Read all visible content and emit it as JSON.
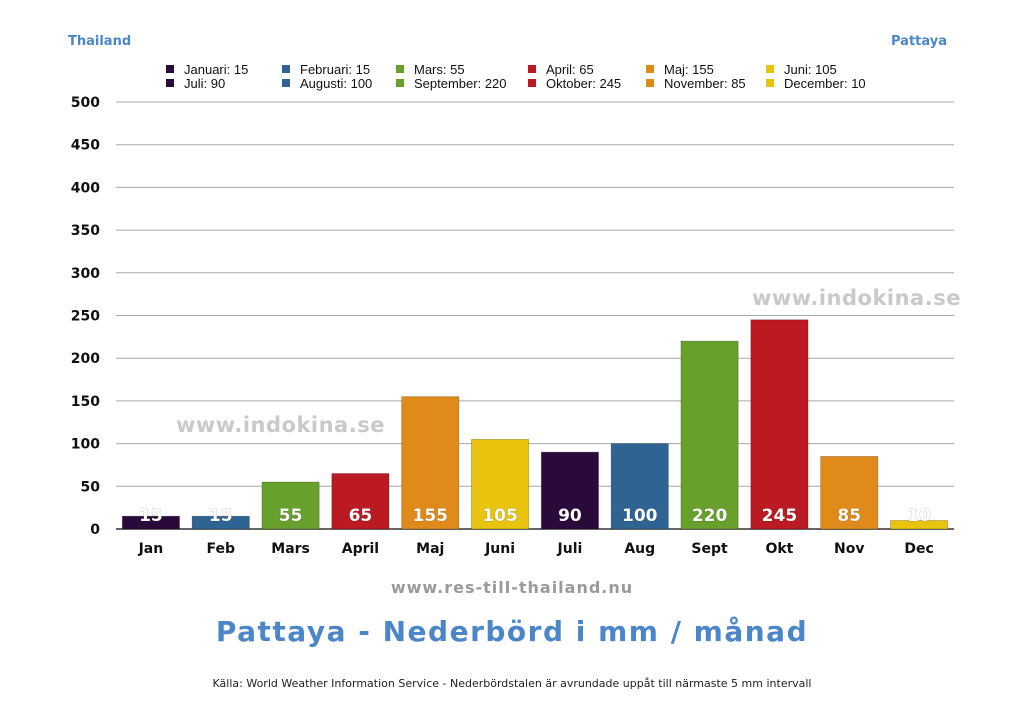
{
  "header": {
    "left": "Thailand",
    "right": "Pattaya"
  },
  "legend": [
    {
      "label": "Januari: 15",
      "color": "#2a0a3a"
    },
    {
      "label": "Februari: 15",
      "color": "#2f6391"
    },
    {
      "label": "Mars: 55",
      "color": "#67a02a"
    },
    {
      "label": "April: 65",
      "color": "#bb1a22"
    },
    {
      "label": "Maj: 155",
      "color": "#e08a1a"
    },
    {
      "label": "Juni: 105",
      "color": "#e8c40e"
    },
    {
      "label": "Juli: 90",
      "color": "#2a0a3a"
    },
    {
      "label": "Augusti: 100",
      "color": "#2f6391"
    },
    {
      "label": "September: 220",
      "color": "#67a02a"
    },
    {
      "label": "Oktober: 245",
      "color": "#bb1a22"
    },
    {
      "label": "November: 85",
      "color": "#e08a1a"
    },
    {
      "label": "December: 10",
      "color": "#e8c40e"
    }
  ],
  "watermarks": {
    "top": "www.indokina.se",
    "middle": "www.indokina.se"
  },
  "site_url": "www.res-till-thailand.nu",
  "title": "Pattaya - Nederbörd i mm / månad",
  "source": "Källa: World Weather Information Service - Nederbördstalen är avrundade uppåt till närmaste 5 mm intervall",
  "chart_data": {
    "type": "bar",
    "categories": [
      "Jan",
      "Feb",
      "Mars",
      "April",
      "Maj",
      "Juni",
      "Juli",
      "Aug",
      "Sept",
      "Okt",
      "Nov",
      "Dec"
    ],
    "values": [
      15,
      15,
      55,
      65,
      155,
      105,
      90,
      100,
      220,
      245,
      85,
      10
    ],
    "colors": [
      "#2a0a3a",
      "#2f6391",
      "#67a02a",
      "#bb1a22",
      "#e08a1a",
      "#e8c40e",
      "#2a0a3a",
      "#2f6391",
      "#67a02a",
      "#bb1a22",
      "#e08a1a",
      "#e8c40e"
    ],
    "ylim": [
      0,
      500
    ],
    "yticks": [
      0,
      50,
      100,
      150,
      200,
      250,
      300,
      350,
      400,
      450,
      500
    ],
    "grid": true,
    "data_labels": true,
    "legend_position": "top"
  }
}
